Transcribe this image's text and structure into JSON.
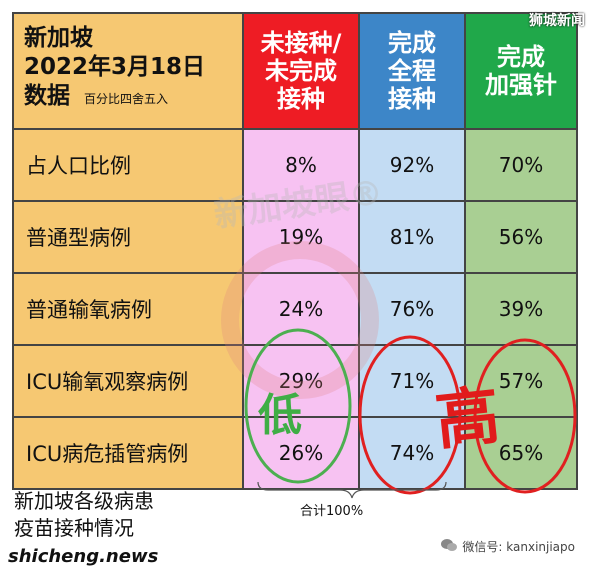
{
  "header": {
    "title_line1": "新加坡",
    "title_line2": "2022年3月18日",
    "title_line3": "数据",
    "note": "百分比四舍五入",
    "col_unvaccinated": [
      "未接种/",
      "未完成",
      "接种"
    ],
    "col_full": [
      "完成",
      "全程",
      "接种"
    ],
    "col_booster": [
      "完成",
      "加强针"
    ]
  },
  "rows": [
    {
      "label": "占人口比例",
      "unvaccinated": "8%",
      "full": "92%",
      "booster": "70%"
    },
    {
      "label": "普通型病例",
      "unvaccinated": "19%",
      "full": "81%",
      "booster": "56%"
    },
    {
      "label": "普通输氧病例",
      "unvaccinated": "24%",
      "full": "76%",
      "booster": "39%"
    },
    {
      "label": "ICU输氧观察病例",
      "unvaccinated": "29%",
      "full": "71%",
      "booster": "57%"
    },
    {
      "label": "ICU病危插管病例",
      "unvaccinated": "26%",
      "full": "74%",
      "booster": "65%"
    }
  ],
  "annotations": {
    "low": "低",
    "high": "高",
    "sum_note": "合计100%"
  },
  "caption": [
    "新加坡各级病患",
    "疫苗接种情况"
  ],
  "watermark": {
    "brand": "狮城新闻",
    "wechat": "微信号: kanxinjiapo",
    "center": "新加坡眼®",
    "bottom": "shicheng.news"
  },
  "colors": {
    "unvaccinated_header": "#ee1c24",
    "full_header": "#3d86c8",
    "booster_header": "#20a84a",
    "circle_green": "#4caf50",
    "circle_red": "#e02020"
  }
}
